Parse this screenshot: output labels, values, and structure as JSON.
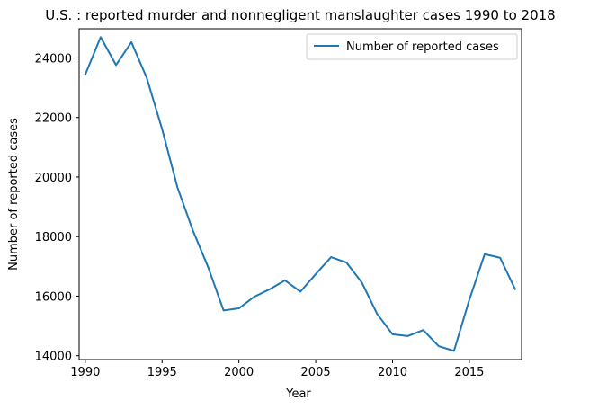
{
  "chart_data": {
    "type": "line",
    "title": "U.S. : reported murder and nonnegligent manslaughter cases 1990 to 2018",
    "xlabel": "Year",
    "ylabel": "Number of reported cases",
    "x": [
      1990,
      1991,
      1992,
      1993,
      1994,
      1995,
      1996,
      1997,
      1998,
      1999,
      2000,
      2001,
      2002,
      2003,
      2004,
      2005,
      2006,
      2007,
      2008,
      2009,
      2010,
      2011,
      2012,
      2013,
      2014,
      2015,
      2016,
      2017,
      2018
    ],
    "series": [
      {
        "name": "Number of reported cases",
        "color": "#1f77b4",
        "values": [
          23440,
          24700,
          23760,
          24530,
          23330,
          21610,
          19650,
          18210,
          16970,
          15520,
          15590,
          15980,
          16230,
          16530,
          16150,
          16740,
          17310,
          17130,
          16460,
          15400,
          14720,
          14660,
          14860,
          14320,
          14160,
          15880,
          17410,
          17290,
          16210
        ]
      }
    ],
    "xlim": [
      1989.6,
      2018.4
    ],
    "ylim": [
      13870,
      24980
    ],
    "xticks": [
      1990,
      1995,
      2000,
      2005,
      2010,
      2015
    ],
    "yticks": [
      14000,
      16000,
      18000,
      20000,
      22000,
      24000
    ],
    "grid": false,
    "legend_position": "upper right"
  }
}
